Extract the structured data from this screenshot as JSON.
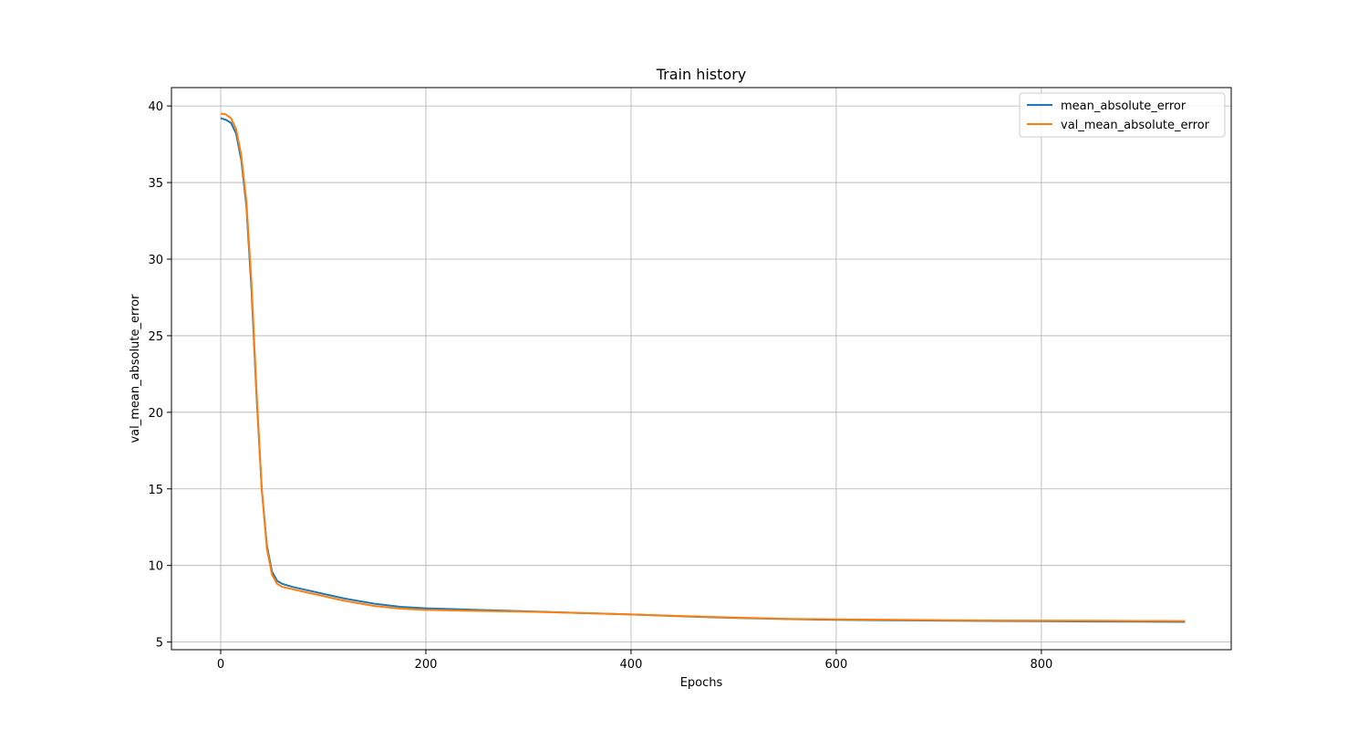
{
  "chart_data": {
    "type": "line",
    "title": "Train history",
    "xlabel": "Epochs",
    "ylabel": "val_mean_absolute_error",
    "xlim": [
      -48,
      985
    ],
    "ylim": [
      4.5,
      41.2
    ],
    "xticks": [
      0,
      200,
      400,
      600,
      800
    ],
    "yticks": [
      5,
      10,
      15,
      20,
      25,
      30,
      35,
      40
    ],
    "grid": true,
    "legend_position": "top-right",
    "series": [
      {
        "name": "mean_absolute_error",
        "color": "#1f77b4",
        "points": [
          [
            0,
            39.2
          ],
          [
            5,
            39.1
          ],
          [
            10,
            38.9
          ],
          [
            15,
            38.2
          ],
          [
            20,
            36.5
          ],
          [
            25,
            33.5
          ],
          [
            30,
            28.0
          ],
          [
            35,
            21.0
          ],
          [
            40,
            15.0
          ],
          [
            45,
            11.3
          ],
          [
            50,
            9.6
          ],
          [
            55,
            9.0
          ],
          [
            60,
            8.8
          ],
          [
            70,
            8.6
          ],
          [
            80,
            8.45
          ],
          [
            100,
            8.15
          ],
          [
            120,
            7.85
          ],
          [
            150,
            7.5
          ],
          [
            175,
            7.3
          ],
          [
            200,
            7.2
          ],
          [
            250,
            7.1
          ],
          [
            300,
            7.0
          ],
          [
            350,
            6.9
          ],
          [
            400,
            6.8
          ],
          [
            450,
            6.68
          ],
          [
            500,
            6.58
          ],
          [
            550,
            6.5
          ],
          [
            600,
            6.45
          ],
          [
            650,
            6.42
          ],
          [
            700,
            6.4
          ],
          [
            750,
            6.38
          ],
          [
            800,
            6.36
          ],
          [
            850,
            6.34
          ],
          [
            900,
            6.33
          ],
          [
            940,
            6.32
          ]
        ]
      },
      {
        "name": "val_mean_absolute_error",
        "color": "#ff7f0e",
        "points": [
          [
            0,
            39.5
          ],
          [
            5,
            39.45
          ],
          [
            10,
            39.2
          ],
          [
            15,
            38.5
          ],
          [
            20,
            36.8
          ],
          [
            25,
            33.8
          ],
          [
            30,
            28.5
          ],
          [
            35,
            21.3
          ],
          [
            40,
            15.0
          ],
          [
            45,
            11.1
          ],
          [
            50,
            9.4
          ],
          [
            55,
            8.8
          ],
          [
            60,
            8.6
          ],
          [
            70,
            8.45
          ],
          [
            80,
            8.3
          ],
          [
            100,
            8.0
          ],
          [
            120,
            7.7
          ],
          [
            150,
            7.35
          ],
          [
            175,
            7.18
          ],
          [
            200,
            7.1
          ],
          [
            250,
            7.03
          ],
          [
            300,
            6.98
          ],
          [
            350,
            6.9
          ],
          [
            400,
            6.8
          ],
          [
            450,
            6.7
          ],
          [
            500,
            6.6
          ],
          [
            550,
            6.52
          ],
          [
            600,
            6.48
          ],
          [
            650,
            6.46
          ],
          [
            700,
            6.43
          ],
          [
            750,
            6.41
          ],
          [
            800,
            6.4
          ],
          [
            850,
            6.39
          ],
          [
            900,
            6.38
          ],
          [
            940,
            6.37
          ]
        ]
      }
    ]
  }
}
